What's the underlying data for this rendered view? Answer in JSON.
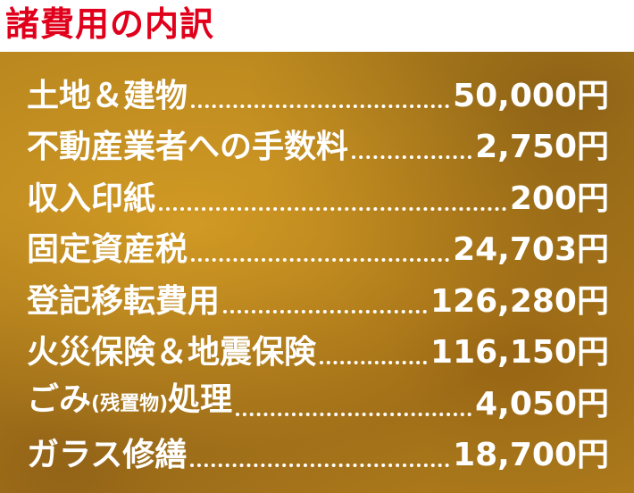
{
  "title": "諸費用の内訳",
  "items": [
    {
      "label": "土地＆建物",
      "value": "50,000円"
    },
    {
      "label": "不動産業者への手数料",
      "value": "2,750円"
    },
    {
      "label": "収入印紙",
      "value": "200円"
    },
    {
      "label": "固定資産税",
      "value": "24,703円"
    },
    {
      "label": "登記移転費用",
      "value": "126,280円"
    },
    {
      "label": "火災保険＆地震保険",
      "value": "116,150円"
    },
    {
      "label_pre": "ごみ",
      "label_small": "(残置物)",
      "label_post": "処理",
      "value": "4,050円"
    },
    {
      "label": "ガラス修繕",
      "value": "18,700円"
    }
  ],
  "colors": {
    "title": "#e0001b",
    "panel": "#b8861f",
    "text": "#ffffff"
  }
}
